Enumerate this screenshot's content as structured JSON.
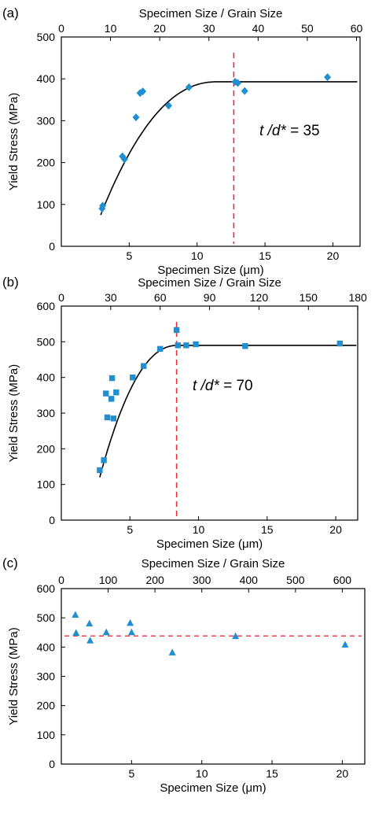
{
  "colors": {
    "marker": "#1f8fd0",
    "fit_curve": "#000000",
    "threshold_line": "#e8303a"
  },
  "chart_data": [
    {
      "type": "scatter",
      "panel_label": "(a)",
      "marker": "diamond",
      "xlabel": "Specimen Size (μm)",
      "x2label": "Specimen Size / Grain Size",
      "ylabel": "Yield Stress (MPa)",
      "xlim": [
        0,
        22
      ],
      "ylim": [
        0,
        500
      ],
      "x_ticks": [
        "5",
        "10",
        "15",
        "20"
      ],
      "x_tick_values": [
        5,
        10,
        15,
        20
      ],
      "y_ticks": [
        "0",
        "100",
        "200",
        "300",
        "400",
        "500"
      ],
      "y_tick_values": [
        0,
        100,
        200,
        300,
        400,
        500
      ],
      "x2_ticks": [
        "0",
        "10",
        "20",
        "30",
        "40",
        "50",
        "60"
      ],
      "x2_tick_values": [
        0,
        10,
        20,
        30,
        40,
        50,
        60
      ],
      "x2_per_x": 2.76,
      "points": [
        {
          "x": 3.0,
          "y": 90
        },
        {
          "x": 3.05,
          "y": 97
        },
        {
          "x": 4.5,
          "y": 215
        },
        {
          "x": 4.65,
          "y": 208
        },
        {
          "x": 5.5,
          "y": 308
        },
        {
          "x": 5.8,
          "y": 366
        },
        {
          "x": 6.0,
          "y": 370
        },
        {
          "x": 7.9,
          "y": 336
        },
        {
          "x": 9.4,
          "y": 380
        },
        {
          "x": 12.8,
          "y": 393
        },
        {
          "x": 13.0,
          "y": 390
        },
        {
          "x": 13.5,
          "y": 371
        },
        {
          "x": 19.6,
          "y": 404
        }
      ],
      "fit": {
        "x_start": 2.9,
        "x_plateau": 11.5,
        "y_start": 75,
        "y_plateau": 393,
        "x_end": 21.8
      },
      "threshold_x": 12.7,
      "annotation": {
        "italic_part": "t /d*",
        "rest": " = 35"
      }
    },
    {
      "type": "scatter",
      "panel_label": "(b)",
      "marker": "square",
      "xlabel": "Specimen Size (μm)",
      "x2label": "Specimen Size / Grain Size",
      "ylabel": "Yield Stress (MPa)",
      "xlim": [
        0,
        21.6
      ],
      "ylim": [
        0,
        600
      ],
      "x_ticks": [
        "5",
        "10",
        "15",
        "20"
      ],
      "x_tick_values": [
        5,
        10,
        15,
        20
      ],
      "y_ticks": [
        "0",
        "100",
        "200",
        "300",
        "400",
        "500",
        "600"
      ],
      "y_tick_values": [
        0,
        100,
        200,
        300,
        400,
        500,
        600
      ],
      "x2_ticks": [
        "0",
        "30",
        "60",
        "90",
        "120",
        "150",
        "180"
      ],
      "x2_tick_values": [
        0,
        30,
        60,
        90,
        120,
        150,
        180
      ],
      "x2_per_x": 8.33,
      "points": [
        {
          "x": 2.8,
          "y": 140
        },
        {
          "x": 3.1,
          "y": 168
        },
        {
          "x": 3.25,
          "y": 355
        },
        {
          "x": 3.35,
          "y": 288
        },
        {
          "x": 3.65,
          "y": 340
        },
        {
          "x": 3.7,
          "y": 398
        },
        {
          "x": 3.8,
          "y": 285
        },
        {
          "x": 4.0,
          "y": 358
        },
        {
          "x": 5.2,
          "y": 400
        },
        {
          "x": 6.0,
          "y": 432
        },
        {
          "x": 7.2,
          "y": 480
        },
        {
          "x": 8.4,
          "y": 533
        },
        {
          "x": 8.5,
          "y": 490
        },
        {
          "x": 9.1,
          "y": 490
        },
        {
          "x": 9.8,
          "y": 493
        },
        {
          "x": 13.4,
          "y": 488
        },
        {
          "x": 20.3,
          "y": 495
        }
      ],
      "fit": {
        "x_start": 2.8,
        "x_plateau": 8.5,
        "y_start": 120,
        "y_plateau": 490,
        "x_end": 21.5
      },
      "threshold_x": 8.4,
      "annotation": {
        "italic_part": "t /d*",
        "rest": " = 70"
      }
    },
    {
      "type": "scatter",
      "panel_label": "(c)",
      "marker": "triangle",
      "xlabel": "Specimen Size (μm)",
      "x2label": "Specimen Size / Grain Size",
      "ylabel": "Yield Stress (MPa)",
      "xlim": [
        0,
        21.6
      ],
      "ylim": [
        0,
        600
      ],
      "x_ticks": [
        "5",
        "10",
        "15",
        "20"
      ],
      "x_tick_values": [
        5,
        10,
        15,
        20
      ],
      "y_ticks": [
        "0",
        "100",
        "200",
        "300",
        "400",
        "500",
        "600"
      ],
      "y_tick_values": [
        0,
        100,
        200,
        300,
        400,
        500,
        600
      ],
      "x2_ticks": [
        "0",
        "100",
        "200",
        "300",
        "400",
        "500",
        "600"
      ],
      "x2_tick_values": [
        0,
        100,
        200,
        300,
        400,
        500,
        600
      ],
      "x2_per_x": 30.0,
      "points": [
        {
          "x": 1.0,
          "y": 510
        },
        {
          "x": 1.05,
          "y": 448
        },
        {
          "x": 2.0,
          "y": 480
        },
        {
          "x": 2.05,
          "y": 422
        },
        {
          "x": 3.2,
          "y": 450
        },
        {
          "x": 4.9,
          "y": 482
        },
        {
          "x": 5.0,
          "y": 450
        },
        {
          "x": 7.9,
          "y": 381
        },
        {
          "x": 12.4,
          "y": 437
        },
        {
          "x": 20.2,
          "y": 408
        }
      ],
      "reference_y": 438
    }
  ]
}
